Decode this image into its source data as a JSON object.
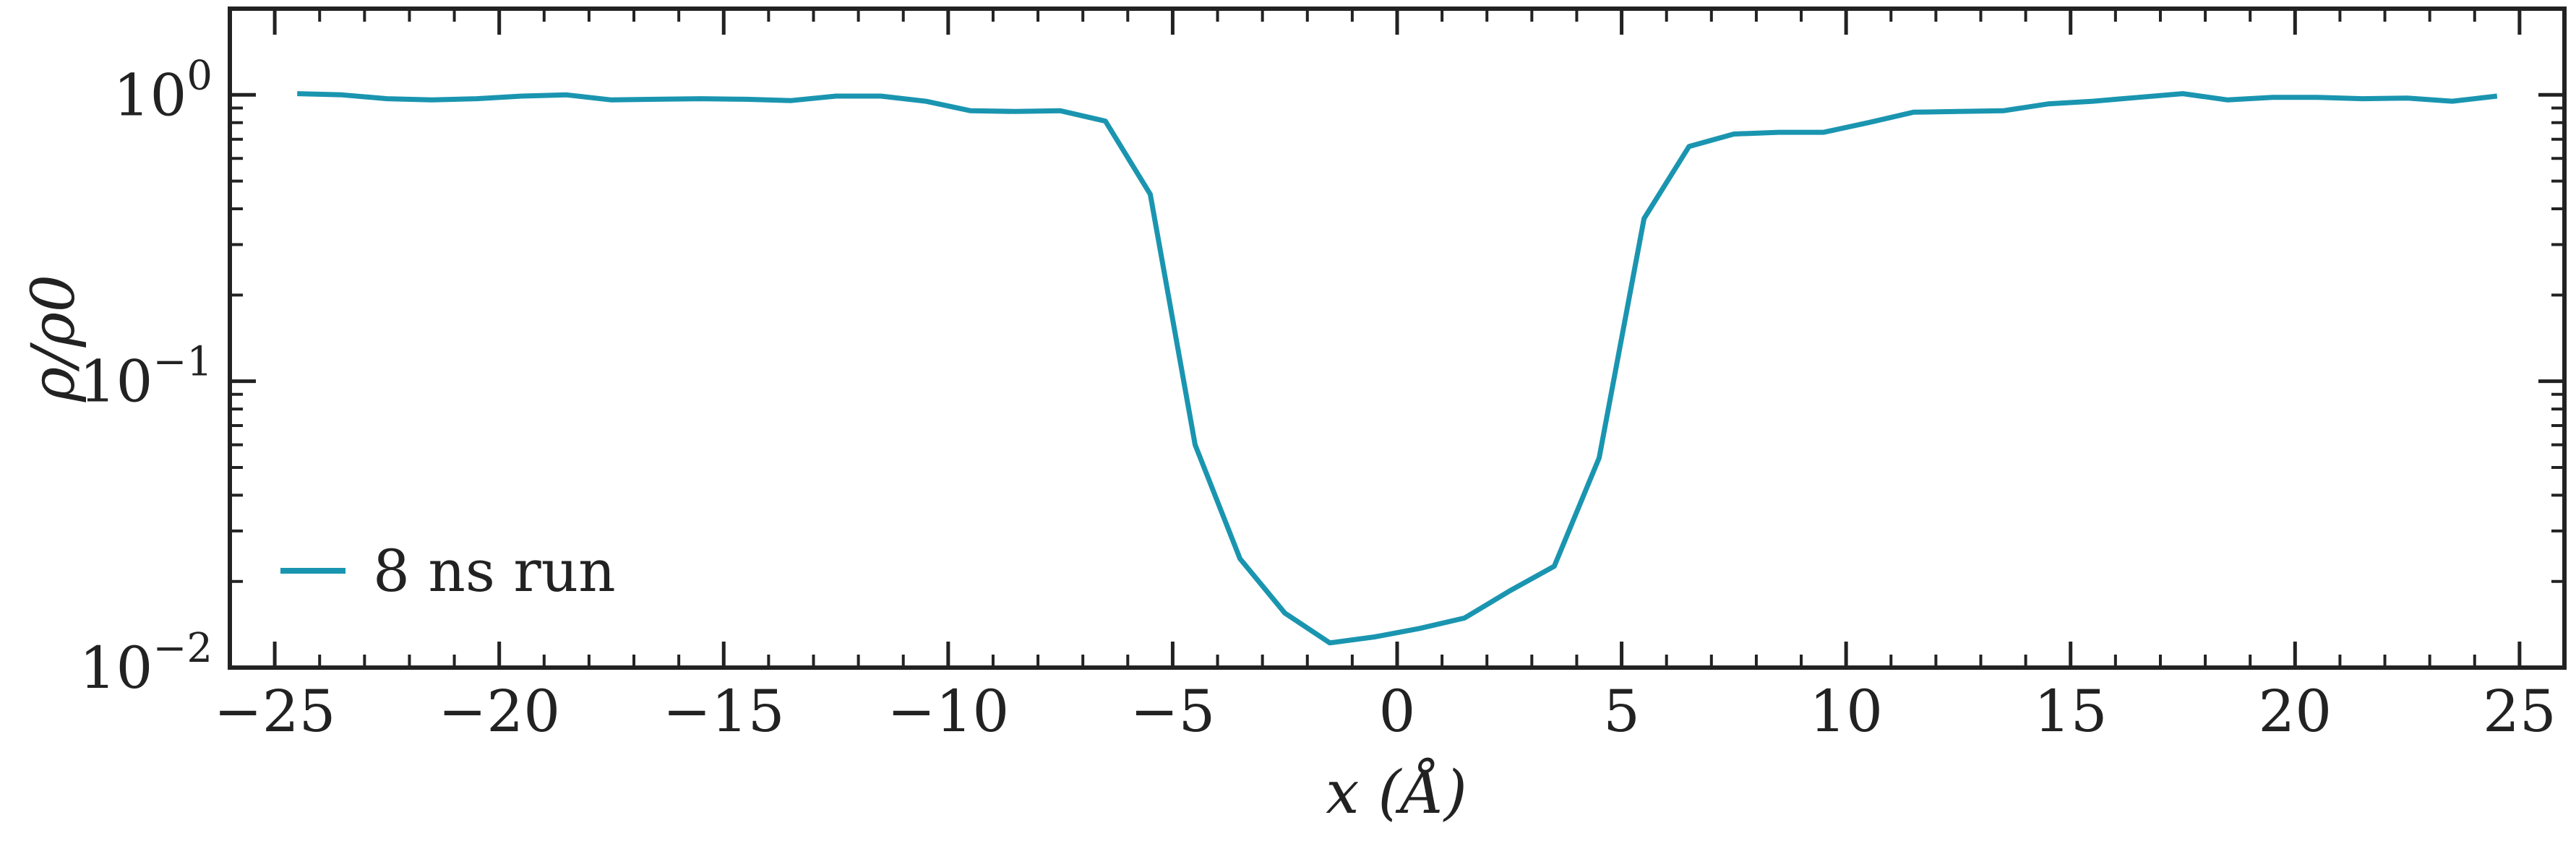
{
  "chart_data": {
    "type": "line",
    "xlabel": "x (Å)",
    "ylabel": "ρ/ρ0",
    "xlim": [
      -26,
      26
    ],
    "ylim": [
      0.01,
      2.0
    ],
    "yscale": "log",
    "xticks": [
      "−25",
      "−20",
      "−15",
      "−10",
      "−5",
      "0",
      "5",
      "10",
      "15",
      "20",
      "25"
    ],
    "xtick_values": [
      -25,
      -20,
      -15,
      -10,
      -5,
      0,
      5,
      10,
      15,
      20,
      25
    ],
    "yticks": [
      {
        "value": 1,
        "base": "10",
        "exp": "0"
      },
      {
        "value": 0.1,
        "base": "10",
        "exp": "−1"
      },
      {
        "value": 0.01,
        "base": "10",
        "exp": "−2"
      }
    ],
    "legend": {
      "position": "lower-left"
    },
    "colors": {
      "series": "#1a95b0",
      "axes": "#222222"
    },
    "series": [
      {
        "name": "8 ns run",
        "x": [
          -24.5,
          -23.5,
          -22.5,
          -21.5,
          -20.5,
          -19.5,
          -18.5,
          -17.5,
          -16.5,
          -15.5,
          -14.5,
          -13.5,
          -12.5,
          -11.5,
          -10.5,
          -9.5,
          -8.5,
          -7.5,
          -6.5,
          -5.5,
          -4.5,
          -3.5,
          -2.5,
          -1.5,
          -0.5,
          0.5,
          1.5,
          2.5,
          3.5,
          4.5,
          5.5,
          6.5,
          7.5,
          8.5,
          9.5,
          10.5,
          11.5,
          12.5,
          13.5,
          14.5,
          15.5,
          16.5,
          17.5,
          18.5,
          19.5,
          20.5,
          21.5,
          22.5,
          23.5,
          24.5
        ],
        "y": [
          1.01,
          1.0,
          0.97,
          0.96,
          0.97,
          0.99,
          1.0,
          0.96,
          0.965,
          0.97,
          0.965,
          0.955,
          0.99,
          0.99,
          0.95,
          0.88,
          0.875,
          0.88,
          0.81,
          0.45,
          0.06,
          0.024,
          0.0155,
          0.0122,
          0.0128,
          0.0137,
          0.0149,
          0.0185,
          0.0226,
          0.054,
          0.37,
          0.66,
          0.73,
          0.74,
          0.74,
          0.8,
          0.87,
          0.875,
          0.88,
          0.93,
          0.95,
          0.98,
          1.01,
          0.96,
          0.98,
          0.98,
          0.97,
          0.975,
          0.95,
          0.99
        ]
      }
    ]
  }
}
